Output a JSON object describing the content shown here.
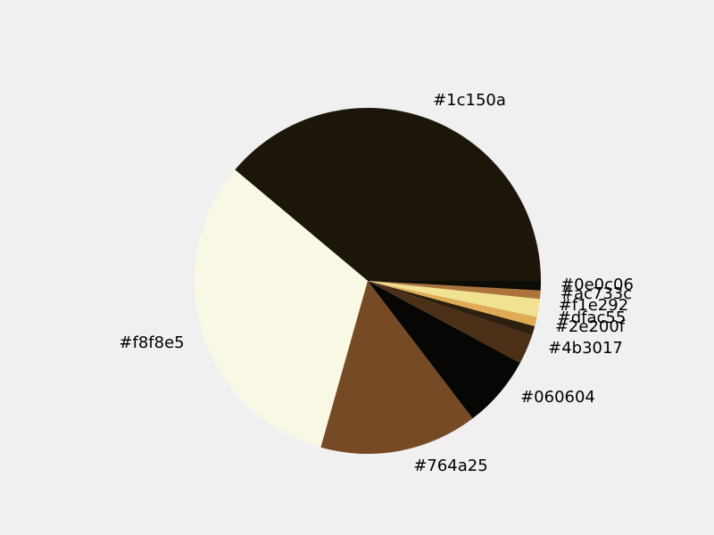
{
  "chart_data": {
    "type": "pie",
    "title": "",
    "slices": [
      {
        "label": "#1c150a",
        "value": 39.6,
        "color": "#1c150a"
      },
      {
        "label": "#f8f8e5",
        "value": 32.3,
        "color": "#f8f8e5"
      },
      {
        "label": "#764a25",
        "value": 15.0,
        "color": "#764a25"
      },
      {
        "label": "#060604",
        "value": 6.9,
        "color": "#060604"
      },
      {
        "label": "#4b3017",
        "value": 2.8,
        "color": "#4b3017"
      },
      {
        "label": "#2e200f",
        "value": 0.9,
        "color": "#2e200f"
      },
      {
        "label": "#dfac55",
        "value": 0.9,
        "color": "#dfac55"
      },
      {
        "label": "#f1e292",
        "value": 1.7,
        "color": "#f1e292"
      },
      {
        "label": "#ac733c",
        "value": 0.8,
        "color": "#ac733c"
      },
      {
        "label": "#0e0c06",
        "value": 0.9,
        "color": "#0e0c06"
      }
    ]
  }
}
